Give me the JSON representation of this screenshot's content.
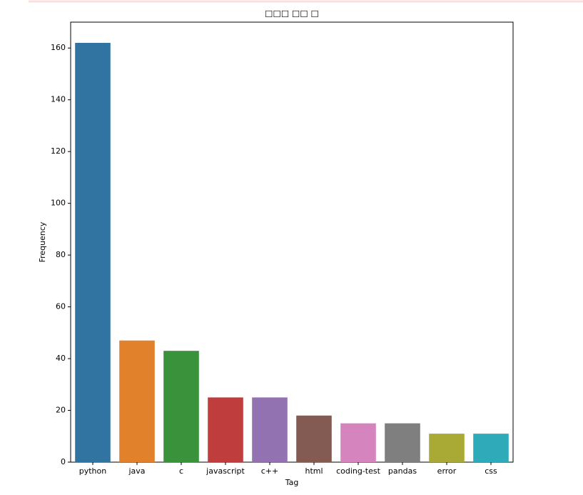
{
  "chart_data": {
    "type": "bar",
    "title": "□□□ □□ □",
    "x_label": "Tag",
    "y_label": "Frequency",
    "categories": [
      "python",
      "java",
      "c",
      "javascript",
      "c++",
      "html",
      "coding-test",
      "pandas",
      "error",
      "css"
    ],
    "values": [
      162,
      47,
      43,
      25,
      25,
      18,
      15,
      15,
      11,
      11
    ],
    "colors": [
      "#3274a1",
      "#e1812c",
      "#3a923a",
      "#c03d3e",
      "#9372b2",
      "#845b53",
      "#d684bd",
      "#7f7f7f",
      "#a9aa35",
      "#2eaab8"
    ],
    "ylim": [
      0,
      170
    ],
    "yticks": [
      0,
      20,
      40,
      60,
      80,
      100,
      120,
      140,
      160
    ],
    "grid": false
  }
}
